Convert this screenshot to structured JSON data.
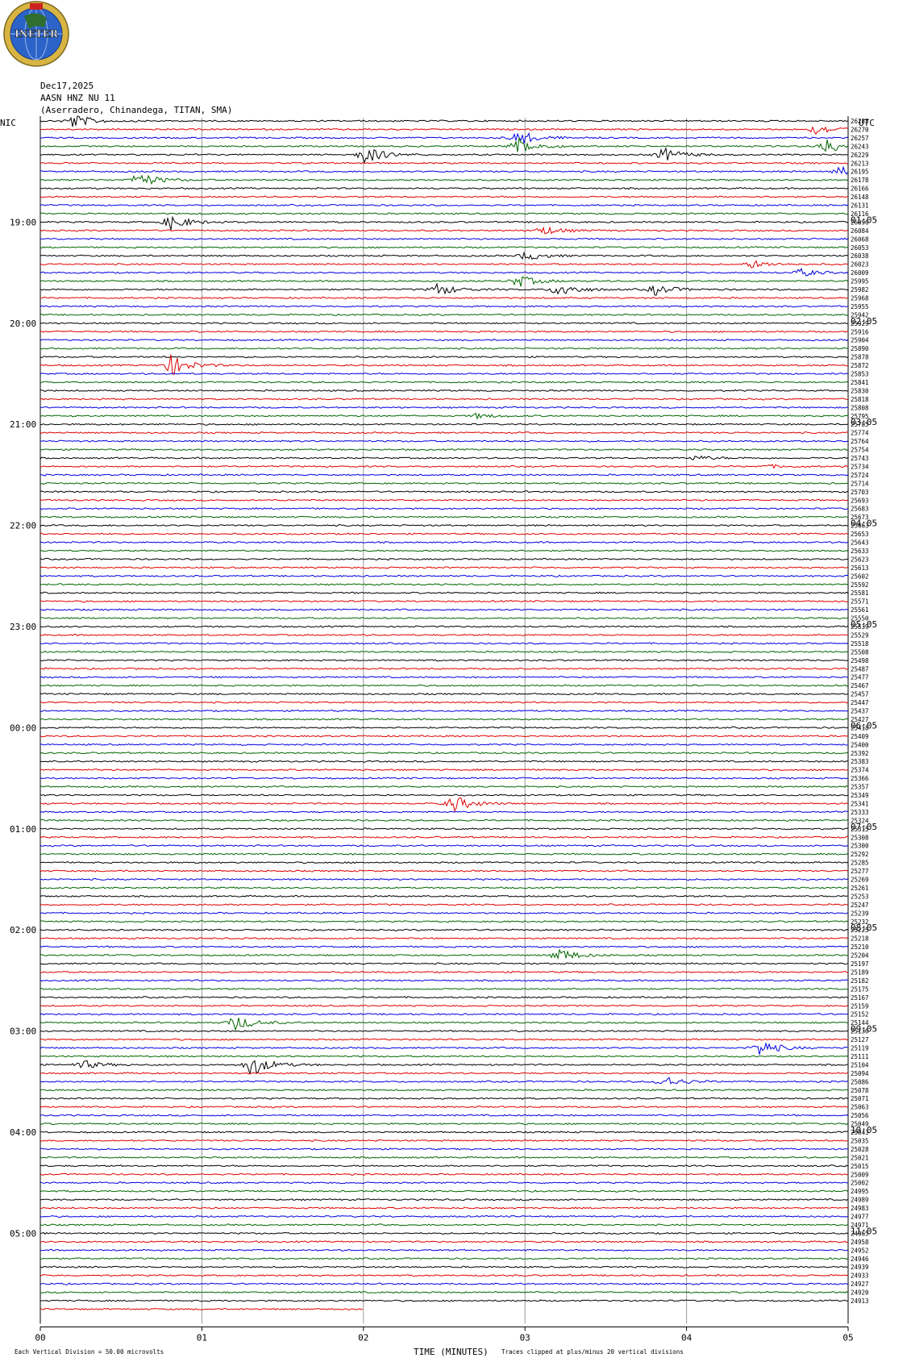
{
  "logo": {
    "text": "INETER",
    "colors": {
      "gold": "#d8b443",
      "blue": "#2b63c8",
      "green": "#2f6e2f",
      "red": "#cc2222"
    }
  },
  "header": {
    "date": "Dec17,2025",
    "channel": "AASN HNZ NU 11",
    "station": "(Aserradero, Chinandega, TITAN, SMA)"
  },
  "chart_data": {
    "type": "line",
    "subtype": "helicorder",
    "left_timezone": "NIC",
    "right_timezone": "UTC",
    "xlabel": "TIME (MINUTES)",
    "x_ticks": [
      "00",
      "01",
      "02",
      "03",
      "04",
      "05"
    ],
    "xlim": [
      0,
      5
    ],
    "left_hour_labels": [
      "19:00",
      "20:00",
      "21:00",
      "22:00",
      "23:00",
      "00:00",
      "01:00",
      "02:00",
      "03:00",
      "04:00",
      "05:00"
    ],
    "right_hour_labels": [
      "01:05",
      "02:05",
      "03:05",
      "04:05",
      "05:05",
      "06:05",
      "07:05",
      "08:05",
      "09:05",
      "10:05",
      "11:05"
    ],
    "trace_colors": [
      "#000000",
      "#e00000",
      "#0000e0",
      "#006600"
    ],
    "trace_count": 142,
    "last_trace_fraction": 0.4,
    "right_counts": [
      26283,
      26270,
      26257,
      26243,
      26229,
      26213,
      26195,
      26178,
      26166,
      26148,
      26131,
      26116,
      26096,
      26084,
      26068,
      26053,
      26038,
      26023,
      26009,
      25995,
      25982,
      25968,
      25955,
      25942,
      25929,
      25916,
      25904,
      25890,
      25878,
      25872,
      25853,
      25841,
      25830,
      25818,
      25808,
      25795,
      25785,
      25774,
      25764,
      25754,
      25743,
      25734,
      25724,
      25714,
      25703,
      25693,
      25683,
      25673,
      25663,
      25653,
      25643,
      25633,
      25623,
      25613,
      25602,
      25592,
      25581,
      25571,
      25561,
      25550,
      25539,
      25529,
      25518,
      25508,
      25498,
      25487,
      25477,
      25467,
      25457,
      25447,
      25437,
      25427,
      25418,
      25409,
      25400,
      25392,
      25383,
      25374,
      25366,
      25357,
      25349,
      25341,
      25333,
      25324,
      25315,
      25308,
      25300,
      25292,
      25285,
      25277,
      25269,
      25261,
      25253,
      25247,
      25239,
      25232,
      25225,
      25218,
      25210,
      25204,
      25197,
      25189,
      25182,
      25175,
      25167,
      25159,
      25152,
      25144,
      25136,
      25127,
      25119,
      25111,
      25104,
      25094,
      25086,
      25078,
      25071,
      25063,
      25056,
      25049,
      25043,
      25035,
      25028,
      25021,
      25015,
      25009,
      25002,
      24995,
      24989,
      24983,
      24977,
      24971,
      24965,
      24958,
      24952,
      24946,
      24939,
      24933,
      24927,
      24920,
      24913
    ],
    "events": [
      {
        "trace": 0,
        "minute": 0.2,
        "amp": 9
      },
      {
        "trace": 1,
        "minute": 4.8,
        "amp": 7
      },
      {
        "trace": 2,
        "minute": 2.95,
        "amp": 10
      },
      {
        "trace": 3,
        "minute": 2.95,
        "amp": 12
      },
      {
        "trace": 3,
        "minute": 4.85,
        "amp": 10
      },
      {
        "trace": 4,
        "minute": 2.0,
        "amp": 12
      },
      {
        "trace": 4,
        "minute": 3.85,
        "amp": 9
      },
      {
        "trace": 6,
        "minute": 4.95,
        "amp": 6
      },
      {
        "trace": 7,
        "minute": 0.6,
        "amp": 10
      },
      {
        "trace": 12,
        "minute": 0.8,
        "amp": 10
      },
      {
        "trace": 13,
        "minute": 3.1,
        "amp": 6
      },
      {
        "trace": 16,
        "minute": 3.0,
        "amp": 6
      },
      {
        "trace": 17,
        "minute": 4.4,
        "amp": 5
      },
      {
        "trace": 18,
        "minute": 4.7,
        "amp": 5
      },
      {
        "trace": 19,
        "minute": 2.95,
        "amp": 8
      },
      {
        "trace": 20,
        "minute": 2.45,
        "amp": 8
      },
      {
        "trace": 20,
        "minute": 3.2,
        "amp": 10
      },
      {
        "trace": 20,
        "minute": 3.8,
        "amp": 7
      },
      {
        "trace": 29,
        "minute": 0.8,
        "amp": 14
      },
      {
        "trace": 35,
        "minute": 2.7,
        "amp": 3
      },
      {
        "trace": 40,
        "minute": 4.05,
        "amp": 3
      },
      {
        "trace": 41,
        "minute": 4.5,
        "amp": 2
      },
      {
        "trace": 81,
        "minute": 2.55,
        "amp": 11
      },
      {
        "trace": 99,
        "minute": 3.2,
        "amp": 9
      },
      {
        "trace": 107,
        "minute": 1.2,
        "amp": 10
      },
      {
        "trace": 110,
        "minute": 4.45,
        "amp": 10
      },
      {
        "trace": 112,
        "minute": 0.25,
        "amp": 6
      },
      {
        "trace": 112,
        "minute": 1.3,
        "amp": 14
      },
      {
        "trace": 114,
        "minute": 3.85,
        "amp": 8
      }
    ]
  },
  "footer": {
    "vertical_division": "Each Vertical Division =    50.00 microvolts",
    "clip_note": "Traces clipped at plus/minus 20 vertical divisions"
  }
}
